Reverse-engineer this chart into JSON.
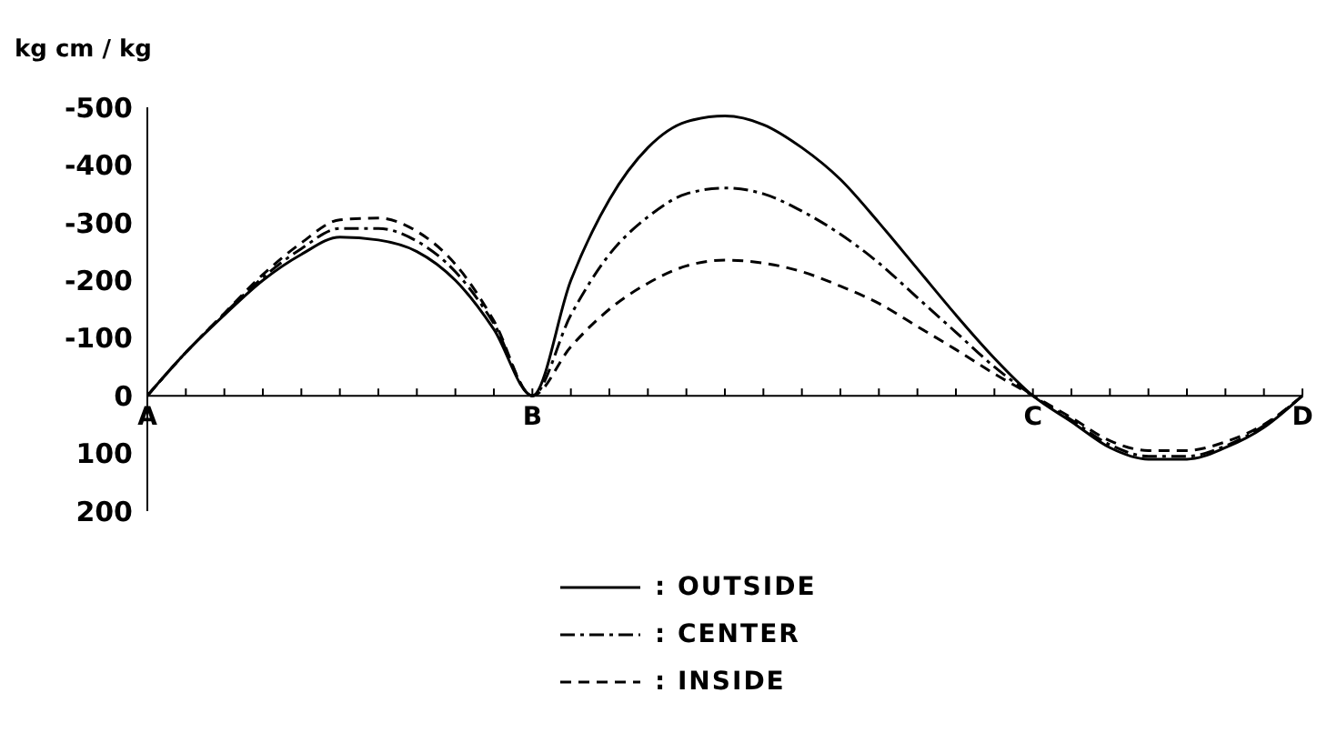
{
  "chart_data": {
    "type": "line",
    "ylabel": "kg cm / kg",
    "ylim": [
      200,
      -500
    ],
    "yticks": [
      -500,
      -400,
      -300,
      -200,
      -100,
      0,
      100,
      200
    ],
    "categories": [
      "A",
      null,
      null,
      null,
      null,
      null,
      null,
      null,
      null,
      null,
      "B",
      null,
      null,
      null,
      null,
      null,
      null,
      null,
      null,
      null,
      null,
      null,
      null,
      "C",
      null,
      null,
      null,
      null,
      null,
      null,
      "D"
    ],
    "series": [
      {
        "name": ": OUTSIDE",
        "color": "#000000",
        "line_style": "solid",
        "values": [
          0,
          -75,
          -140,
          -200,
          -245,
          -275,
          -270,
          -250,
          -200,
          -115,
          0,
          -200,
          -340,
          -430,
          -475,
          -485,
          -470,
          -430,
          -375,
          -300,
          -220,
          -140,
          -65,
          0,
          45,
          90,
          110,
          110,
          90,
          55,
          0
        ]
      },
      {
        "name": ": CENTER",
        "color": "#000000",
        "line_style": "dashdot",
        "values": [
          0,
          -75,
          -142,
          -205,
          -255,
          -290,
          -290,
          -268,
          -215,
          -125,
          0,
          -140,
          -245,
          -310,
          -350,
          -360,
          -350,
          -320,
          -280,
          -230,
          -170,
          -110,
          -50,
          0,
          42,
          85,
          105,
          105,
          87,
          52,
          0
        ]
      },
      {
        "name": ": INSIDE",
        "color": "#000000",
        "line_style": "dashed",
        "values": [
          0,
          -75,
          -143,
          -210,
          -265,
          -305,
          -308,
          -285,
          -228,
          -130,
          0,
          -85,
          -150,
          -195,
          -225,
          -235,
          -230,
          -215,
          -190,
          -160,
          -120,
          -80,
          -38,
          0,
          38,
          78,
          95,
          95,
          80,
          50,
          0
        ]
      }
    ],
    "legend": "bottom",
    "grid": false
  }
}
